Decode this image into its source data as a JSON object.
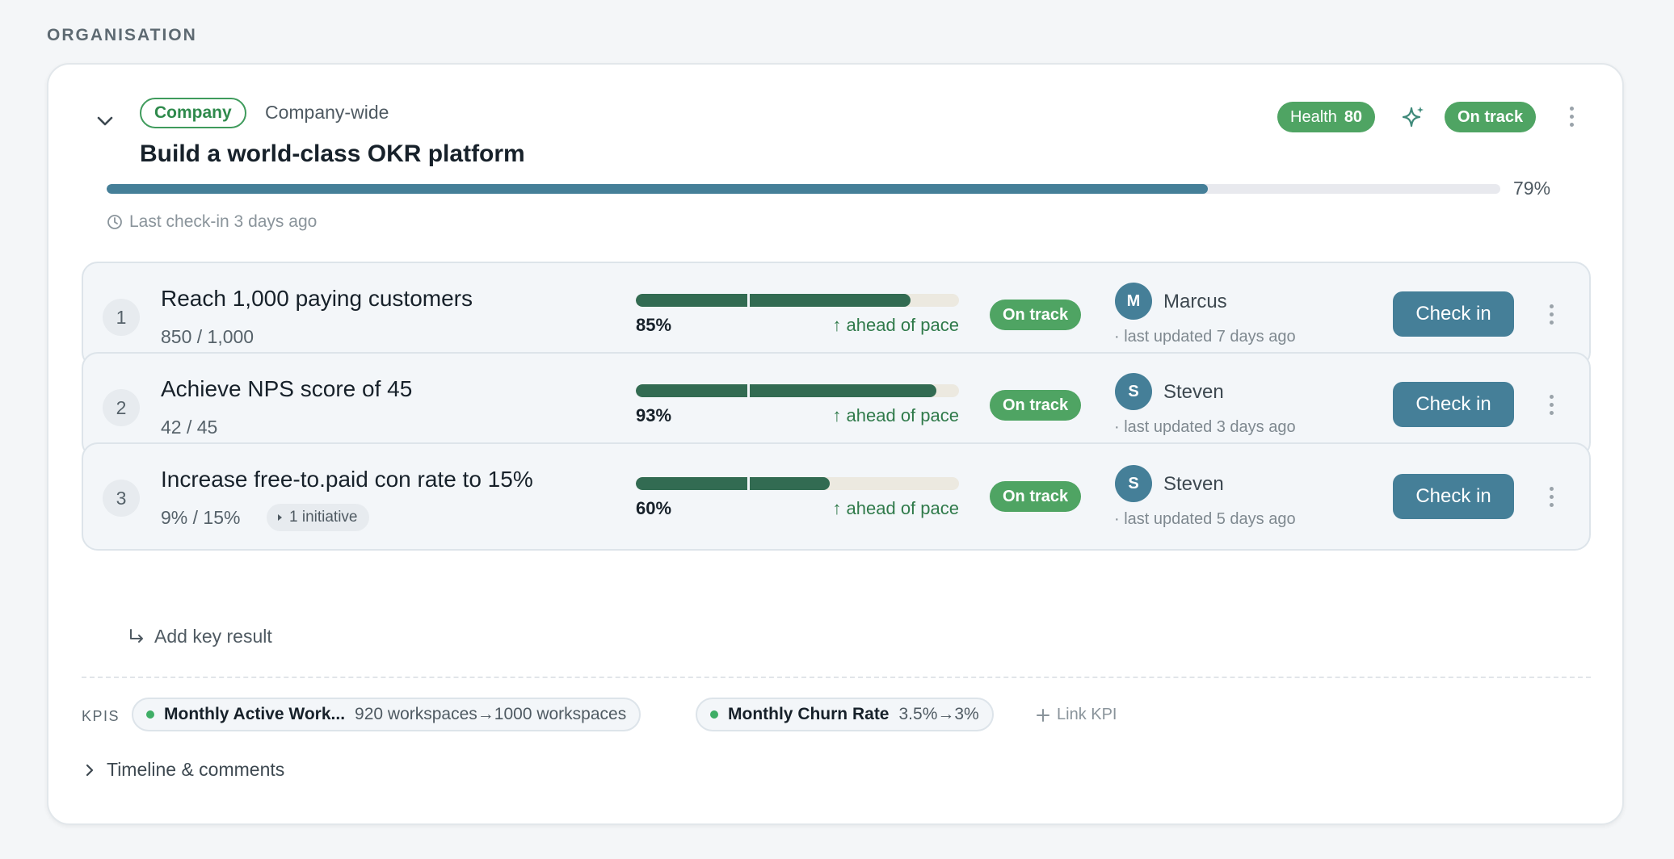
{
  "section_label": "ORGANISATION",
  "objective": {
    "tag": "Company",
    "scope": "Company-wide",
    "title": "Build a world-class OKR platform",
    "health_label": "Health",
    "health_score": "80",
    "status": "On track",
    "progress_percent": 79,
    "progress_text": "79%",
    "last_checkin": "Last check-in 3 days ago"
  },
  "key_results": [
    {
      "number": "1",
      "title": "Reach 1,000 paying customers",
      "value": "850 / 1,000",
      "progress": 85,
      "progress_text": "85%",
      "pace": "↑ ahead of pace",
      "status": "On track",
      "owner_initial": "M",
      "owner": "Marcus",
      "updated": "· last updated 7 days ago",
      "button": "Check in"
    },
    {
      "number": "2",
      "title": "Achieve NPS score of 45",
      "value": "42 / 45",
      "progress": 93,
      "progress_text": "93%",
      "pace": "↑ ahead of pace",
      "status": "On track",
      "owner_initial": "S",
      "owner": "Steven",
      "updated": "· last updated 3 days ago",
      "button": "Check in"
    },
    {
      "number": "3",
      "title": "Increase free-to.paid con rate to 15%",
      "value": "9% / 15%",
      "initiative": "1 initiative",
      "progress": 60,
      "progress_text": "60%",
      "pace": "↑ ahead of pace",
      "status": "On track",
      "owner_initial": "S",
      "owner": "Steven",
      "updated": "· last updated 5 days ago",
      "button": "Check in"
    }
  ],
  "add_key_result": "Add key result",
  "kpis": {
    "label": "KPIS",
    "items": [
      {
        "name": "Monthly Active Work...",
        "values": "920 workspaces→1000 workspaces"
      },
      {
        "name": "Monthly Churn Rate",
        "values": "3.5%→3%"
      }
    ],
    "link_label": "Link KPI"
  },
  "timeline_label": "Timeline & comments",
  "colors": {
    "accent": "#457f98",
    "status_green": "#4fa463",
    "kr_bar": "#326b52",
    "kpi_dot": "#3fae66"
  },
  "icons": [
    "chevron-down-icon",
    "sparkle-icon",
    "kebab-icon",
    "clock-icon",
    "arrow-return-icon",
    "plus-icon",
    "chevron-right-icon"
  ]
}
